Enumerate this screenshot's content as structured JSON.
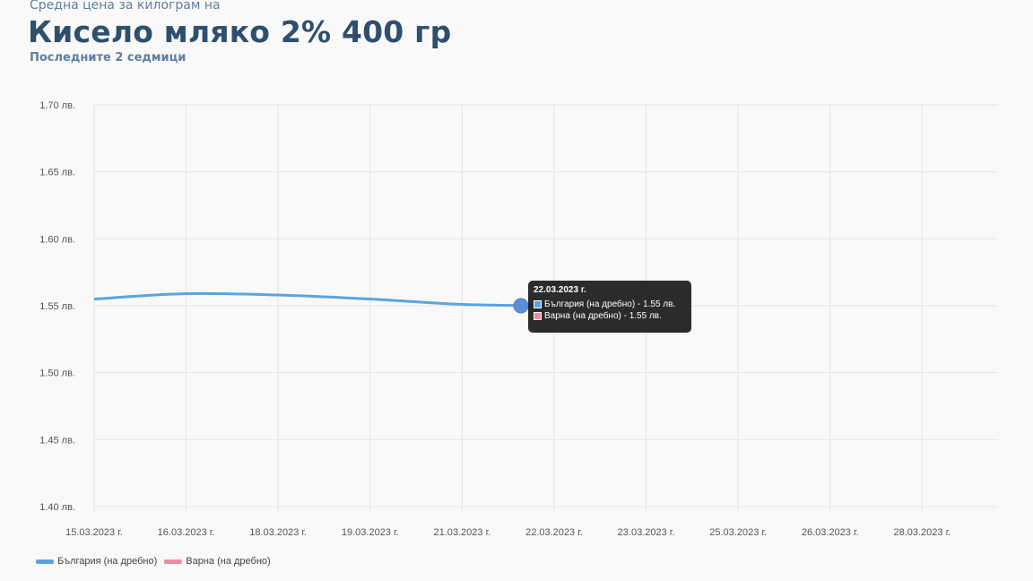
{
  "header": {
    "subtitle": "Средна цена за килограм на",
    "title": "Кисело мляко 2% 400 гр",
    "period": "Последните 2 седмици"
  },
  "colors": {
    "bulgaria": "#5ba4e0",
    "varna": "#f08aa0",
    "grid": "#e4e4e4"
  },
  "chart_data": {
    "type": "line",
    "x": [
      "15.03.2023 г.",
      "16.03.2023 г.",
      "18.03.2023 г.",
      "19.03.2023 г.",
      "21.03.2023 г.",
      "22.03.2023 г.",
      "23.03.2023 г.",
      "25.03.2023 г.",
      "26.03.2023 г.",
      "28.03.2023 г."
    ],
    "series": [
      {
        "name": "България (на дребно)",
        "values": [
          1.555,
          1.559,
          1.558,
          1.555,
          1.551,
          1.55,
          null,
          null,
          null,
          null
        ]
      },
      {
        "name": "Варна (на дребно)",
        "values": [
          null,
          null,
          null,
          null,
          null,
          1.55,
          null,
          null,
          null,
          null
        ]
      }
    ],
    "y_ticks": [
      "1.70 лв.",
      "1.65 лв.",
      "1.60 лв.",
      "1.55 лв.",
      "1.50 лв.",
      "1.45 лв.",
      "1.40 лв."
    ],
    "ylim": [
      1.4,
      1.7
    ],
    "grid": true,
    "legend_position": "bottom-left"
  },
  "legend": [
    {
      "label": "България (на дребно)"
    },
    {
      "label": "Варна (на дребно)"
    }
  ],
  "tooltip": {
    "title": "22.03.2023 г.",
    "rows": [
      {
        "text": "България (на дребно) - 1.55 лв."
      },
      {
        "text": "Варна (на дребно) - 1.55 лв."
      }
    ]
  }
}
